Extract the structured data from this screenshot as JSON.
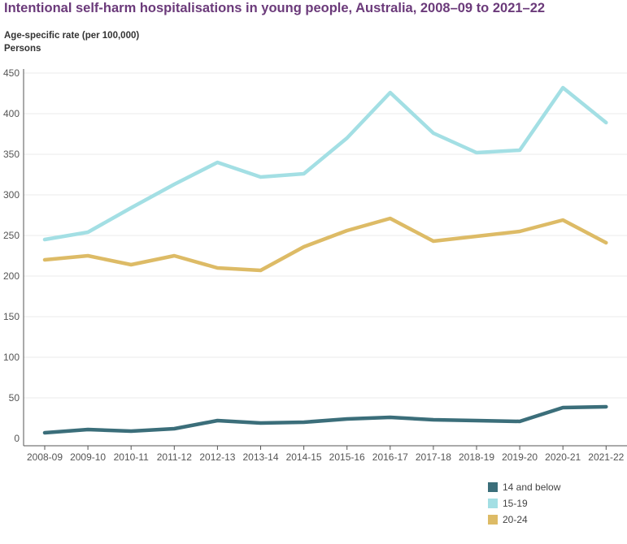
{
  "title": "Intentional self-harm hospitalisations in young people, Australia, 2008–09 to 2021–22",
  "subtitle1": "Age-specific rate (per 100,000)",
  "subtitle2": "Persons",
  "chart_data": {
    "type": "line",
    "title": "Intentional self-harm hospitalisations in young people, Australia, 2008–09 to 2021–22",
    "ylabel": "Age-specific rate (per 100,000)",
    "xlabel": "",
    "categories": [
      "2008-09",
      "2009-10",
      "2010-11",
      "2011-12",
      "2012-13",
      "2013-14",
      "2014-15",
      "2015-16",
      "2016-17",
      "2017-18",
      "2018-19",
      "2019-20",
      "2020-21",
      "2021-22"
    ],
    "ylim": [
      0,
      450
    ],
    "yticks": [
      0,
      50,
      100,
      150,
      200,
      250,
      300,
      350,
      400,
      450
    ],
    "grid": true,
    "legend_position": "bottom-right",
    "series": [
      {
        "name": "14 and below",
        "color": "#3b6e7a",
        "values": [
          7,
          11,
          9,
          12,
          22,
          19,
          20,
          24,
          26,
          23,
          22,
          21,
          38,
          39
        ]
      },
      {
        "name": "15-19",
        "color": "#a3dfe4",
        "values": [
          245,
          254,
          284,
          313,
          340,
          322,
          326,
          370,
          426,
          376,
          352,
          355,
          432,
          389
        ]
      },
      {
        "name": "20-24",
        "color": "#ddbb66",
        "values": [
          220,
          225,
          214,
          225,
          210,
          207,
          236,
          256,
          271,
          243,
          249,
          255,
          269,
          241
        ]
      }
    ]
  }
}
